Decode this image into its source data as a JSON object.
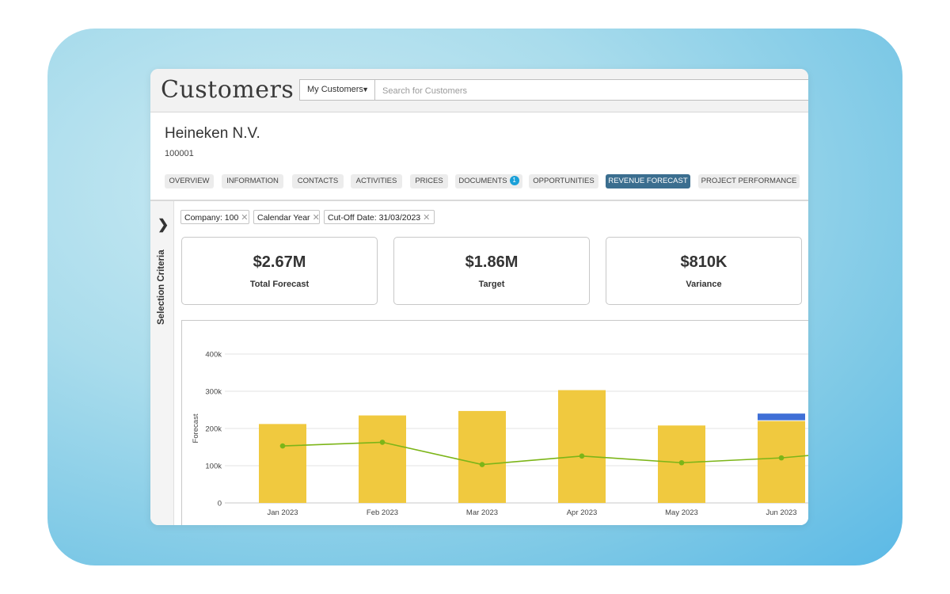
{
  "app": {
    "title": "Customers"
  },
  "search": {
    "scope_label": "My Customers",
    "placeholder": "Search for Customers"
  },
  "customer": {
    "name": "Heineken N.V.",
    "id": "100001"
  },
  "tabs": [
    {
      "label": "OVERVIEW"
    },
    {
      "label": "INFORMATION"
    },
    {
      "label": "CONTACTS"
    },
    {
      "label": "ACTIVITIES"
    },
    {
      "label": "PRICES"
    },
    {
      "label": "DOCUMENTS",
      "badge": "1"
    },
    {
      "label": "OPPORTUNITIES"
    },
    {
      "label": "REVENUE FORECAST",
      "active": true
    },
    {
      "label": "PROJECT PERFORMANCE"
    }
  ],
  "sidebar": {
    "label": "Selection Criteria",
    "toggle_icon": "chevron-right-icon"
  },
  "filters": [
    {
      "label": "Company: 100"
    },
    {
      "label": "Calendar Year"
    },
    {
      "label": "Cut-Off Date: 31/03/2023"
    }
  ],
  "kpis": [
    {
      "value": "$2.67M",
      "label": "Total Forecast"
    },
    {
      "value": "$1.86M",
      "label": "Target"
    },
    {
      "value": "$810K",
      "label": "Variance"
    }
  ],
  "chart_data": {
    "type": "bar",
    "categories": [
      "Jan 2023",
      "Feb 2023",
      "Mar 2023",
      "Apr 2023",
      "May 2023",
      "Jun 2023"
    ],
    "ylabel": "Forecast",
    "ylim": [
      0,
      400000
    ],
    "yticks": [
      "0",
      "100k",
      "200k",
      "300k",
      "400k"
    ],
    "ytick_values": [
      0,
      100000,
      200000,
      300000,
      400000
    ],
    "grid": true,
    "series": [
      {
        "kind": "bar",
        "color": "#f0c93f",
        "values": [
          212000,
          235000,
          247000,
          303000,
          208000,
          220000
        ]
      },
      {
        "kind": "bar-stack",
        "color": "#3f6fd6",
        "values": [
          0,
          0,
          0,
          0,
          0,
          20000
        ]
      },
      {
        "kind": "line",
        "color": "#7cb518",
        "values": [
          153000,
          163000,
          103000,
          126000,
          108000,
          121000
        ]
      }
    ]
  }
}
